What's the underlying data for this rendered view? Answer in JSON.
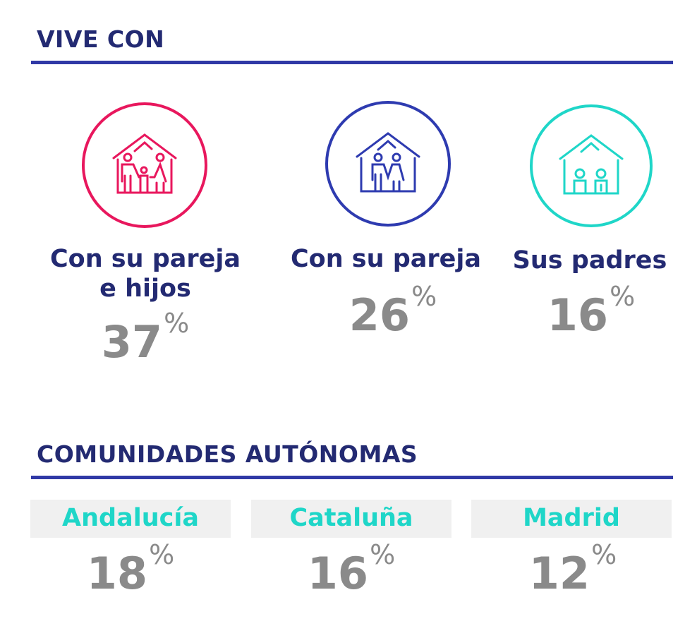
{
  "section1": {
    "title": "VIVE CON",
    "items": [
      {
        "label_line1": "Con su pareja",
        "label_line2": "e hijos",
        "value": "37",
        "unit": "%",
        "color": "#e8175d",
        "icon": "house-family-icon"
      },
      {
        "label_line1": "Con su pareja",
        "label_line2": "",
        "value": "26",
        "unit": "%",
        "color": "#2e3bb0",
        "icon": "house-couple-icon"
      },
      {
        "label_line1": "Sus padres",
        "label_line2": "",
        "value": "16",
        "unit": "%",
        "color": "#1fd6c8",
        "icon": "house-parents-icon"
      }
    ]
  },
  "section2": {
    "title": "COMUNIDADES AUTÓNOMAS",
    "items": [
      {
        "label": "Andalucía",
        "value": "18",
        "unit": "%"
      },
      {
        "label": "Cataluña",
        "value": "16",
        "unit": "%"
      },
      {
        "label": "Madrid",
        "value": "12",
        "unit": "%"
      }
    ]
  }
}
